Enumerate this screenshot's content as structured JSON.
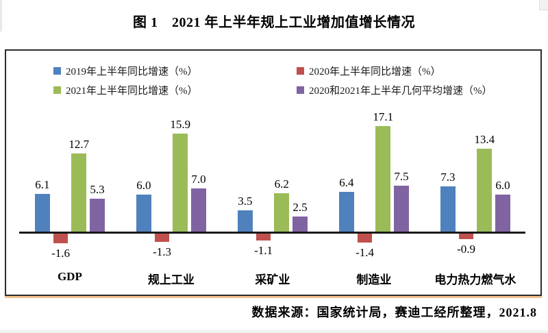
{
  "figure": {
    "title": "图 1　2021 年上半年规上工业增加值增长情况",
    "source_note": "数据来源：国家统计局，赛迪工经所整理，2021.8"
  },
  "chart_data": {
    "type": "bar",
    "title": "图 1　2021 年上半年规上工业增加值增长情况",
    "categories": [
      "GDP",
      "规上工业",
      "采矿业",
      "制造业",
      "电力热力燃气水"
    ],
    "series": [
      {
        "name": "2019年上半年同比增速（%）",
        "color": "#4F81BD",
        "values": [
          6.1,
          6.0,
          3.5,
          6.4,
          7.3
        ]
      },
      {
        "name": "2020年上半年同比增速（%）",
        "color": "#C0504D",
        "values": [
          -1.6,
          -1.3,
          -1.1,
          -1.4,
          -0.9
        ]
      },
      {
        "name": "2021年上半年同比增速（%）",
        "color": "#9BBB59",
        "values": [
          12.7,
          15.9,
          6.2,
          17.1,
          13.4
        ]
      },
      {
        "name": "2020和2021年上半年几何平均增速（%）",
        "color": "#8064A2",
        "values": [
          5.3,
          7.0,
          2.5,
          7.5,
          6.0
        ]
      }
    ],
    "legend_position": "top",
    "legend_columns": 2,
    "grid": false,
    "data_labels": true,
    "data_label_decimals": 1,
    "baseline": 0,
    "ylim": [
      -3,
      19
    ],
    "axis_color": "#1a1a1a",
    "frame_border_color": "#2b2b2b",
    "frame_shadow_color": "#f3c18c",
    "source_note": "数据来源：国家统计局，赛迪工经所整理，2021.8"
  }
}
